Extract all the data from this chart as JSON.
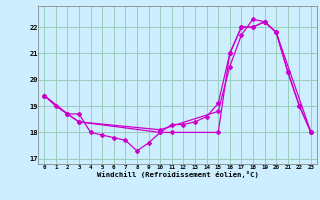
{
  "xlabel": "Windchill (Refroidissement éolien,°C)",
  "background_color": "#cceeff",
  "grid_color": "#99ccbb",
  "line_color": "#cc00cc",
  "xlim": [
    -0.5,
    23.5
  ],
  "ylim": [
    16.8,
    22.8
  ],
  "yticks": [
    17,
    18,
    19,
    20,
    21,
    22
  ],
  "xticks": [
    0,
    1,
    2,
    3,
    4,
    5,
    6,
    7,
    8,
    9,
    10,
    11,
    12,
    13,
    14,
    15,
    16,
    17,
    18,
    19,
    20,
    21,
    22,
    23
  ],
  "line1_x": [
    0,
    1,
    2,
    3,
    4,
    5,
    6,
    7,
    8,
    9,
    10,
    11,
    12,
    13,
    14,
    15,
    16,
    17,
    18,
    19,
    20,
    21,
    22,
    23
  ],
  "line1_y": [
    19.4,
    19.0,
    18.7,
    18.7,
    18.0,
    17.9,
    17.8,
    17.7,
    17.3,
    17.6,
    18.0,
    18.3,
    18.3,
    18.4,
    18.6,
    19.1,
    21.0,
    22.0,
    22.0,
    22.2,
    21.8,
    20.3,
    19.0,
    18.0
  ],
  "line2_x": [
    0,
    2,
    3,
    10,
    11,
    15,
    16,
    17,
    18,
    19,
    20,
    21,
    22,
    23
  ],
  "line2_y": [
    19.4,
    18.7,
    18.4,
    18.0,
    18.0,
    18.0,
    21.0,
    22.0,
    22.0,
    22.2,
    21.8,
    20.3,
    19.0,
    18.0
  ],
  "line3_x": [
    0,
    2,
    3,
    10,
    15,
    16,
    17,
    18,
    19,
    20,
    23
  ],
  "line3_y": [
    19.4,
    18.7,
    18.4,
    18.1,
    18.8,
    20.5,
    21.7,
    22.3,
    22.2,
    21.8,
    18.0
  ]
}
